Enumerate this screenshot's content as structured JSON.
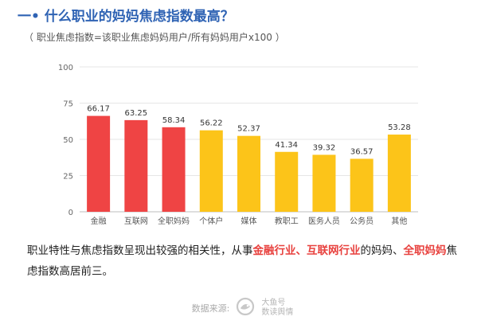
{
  "header": {
    "title": "一• 什么职业的妈妈焦虑指数最高？",
    "subtitle": "（ 职业焦虑指数=该职业焦虑妈妈用户/所有妈妈用户x100 ）"
  },
  "chart_data": {
    "type": "bar",
    "title": "",
    "xlabel": "",
    "ylabel": "",
    "ylim": [
      0,
      100
    ],
    "yticks": [
      0,
      25,
      50,
      75,
      100
    ],
    "grid": true,
    "categories": [
      "金融",
      "互联网",
      "全职妈妈",
      "个体户",
      "媒体",
      "教职工",
      "医务人员",
      "公务员",
      "其他"
    ],
    "values": [
      66.17,
      63.25,
      58.34,
      56.22,
      52.37,
      41.34,
      39.32,
      36.57,
      53.28
    ],
    "bar_colors": [
      "#ef4444",
      "#ef4444",
      "#ef4444",
      "#fcc419",
      "#fcc419",
      "#fcc419",
      "#fcc419",
      "#fcc419",
      "#fcc419"
    ]
  },
  "conclusion": {
    "part1": "职业特性与焦虑指数呈现出较强的相关性，从事",
    "hl1": "金融行业、互联网行业",
    "part2": "的妈妈、",
    "hl2": "全职妈妈",
    "part3": "焦虑指数高居前三。"
  },
  "footer": {
    "source_label": "数据来源:",
    "logo_line1": "大鱼号",
    "logo_line2": "数读舆情"
  },
  "colors": {
    "accent": "#2f63b4",
    "highlight": "#e8413e"
  }
}
